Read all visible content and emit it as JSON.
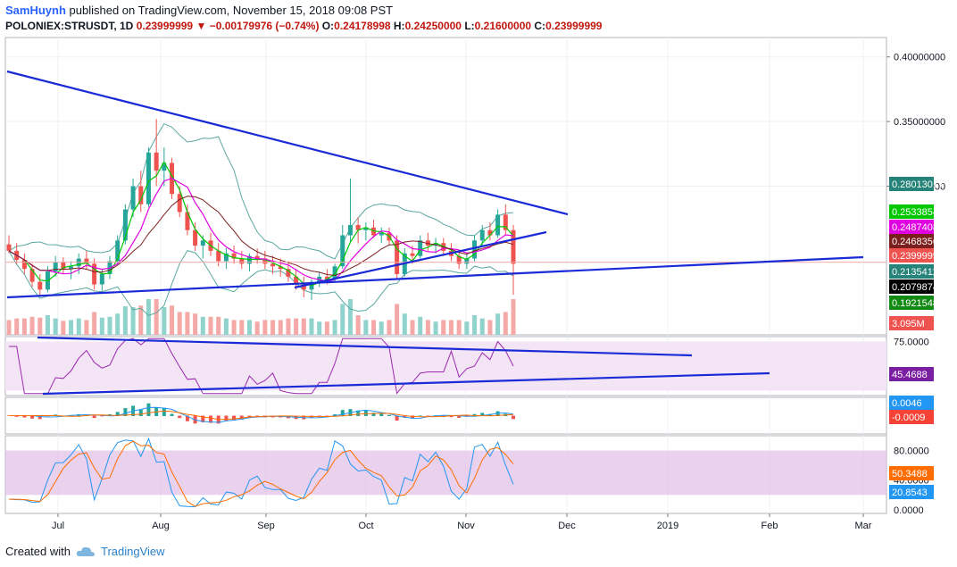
{
  "header": {
    "author": "SamHuynh",
    "published": "published on TradingView.com, November 15, 2018 09:08 PST",
    "symbol": "POLONIEX:STRUSDT, 1D",
    "last": "0.23999999",
    "change": "−0.00179976 (−0.74%)",
    "open_label": "O:",
    "open": "0.24178998",
    "high_label": "H:",
    "high": "0.24250000",
    "low_label": "L:",
    "low": "0.21600000",
    "close_label": "C:",
    "close": "0.23999999"
  },
  "footer": {
    "created_with": "Created with",
    "brand": "TradingView"
  },
  "chart_data": [
    {
      "type": "candlestick",
      "pane": "price",
      "y_ticks": [
        "0.40000000",
        "0.35000000",
        "0.30000000"
      ],
      "y_tick_values": [
        0.4,
        0.35,
        0.3
      ],
      "ylim": [
        0.185,
        0.415
      ],
      "x_labels": [
        "Jul",
        "Aug",
        "Sep",
        "Oct",
        "Nov",
        "Dec",
        "2019",
        "Feb",
        "Mar"
      ],
      "ohlc_approx": [
        [
          0.255,
          0.262,
          0.248,
          0.25
        ],
        [
          0.25,
          0.256,
          0.24,
          0.243
        ],
        [
          0.243,
          0.248,
          0.232,
          0.236
        ],
        [
          0.236,
          0.24,
          0.222,
          0.226
        ],
        [
          0.226,
          0.232,
          0.215,
          0.22
        ],
        [
          0.22,
          0.238,
          0.218,
          0.234
        ],
        [
          0.234,
          0.246,
          0.23,
          0.241
        ],
        [
          0.241,
          0.245,
          0.232,
          0.236
        ],
        [
          0.236,
          0.242,
          0.228,
          0.238
        ],
        [
          0.238,
          0.248,
          0.232,
          0.244
        ],
        [
          0.244,
          0.25,
          0.236,
          0.24
        ],
        [
          0.24,
          0.244,
          0.22,
          0.224
        ],
        [
          0.224,
          0.236,
          0.219,
          0.232
        ],
        [
          0.232,
          0.246,
          0.228,
          0.242
        ],
        [
          0.242,
          0.262,
          0.24,
          0.258
        ],
        [
          0.258,
          0.286,
          0.255,
          0.282
        ],
        [
          0.282,
          0.306,
          0.276,
          0.3
        ],
        [
          0.3,
          0.312,
          0.28,
          0.286
        ],
        [
          0.286,
          0.33,
          0.284,
          0.326
        ],
        [
          0.326,
          0.352,
          0.3,
          0.312
        ],
        [
          0.312,
          0.33,
          0.3,
          0.318
        ],
        [
          0.318,
          0.322,
          0.29,
          0.294
        ],
        [
          0.294,
          0.3,
          0.276,
          0.28
        ],
        [
          0.28,
          0.286,
          0.262,
          0.266
        ],
        [
          0.266,
          0.272,
          0.25,
          0.254
        ],
        [
          0.254,
          0.262,
          0.244,
          0.258
        ],
        [
          0.258,
          0.264,
          0.246,
          0.25
        ],
        [
          0.25,
          0.256,
          0.238,
          0.242
        ],
        [
          0.242,
          0.252,
          0.236,
          0.248
        ],
        [
          0.248,
          0.254,
          0.24,
          0.244
        ],
        [
          0.244,
          0.25,
          0.236,
          0.24
        ],
        [
          0.24,
          0.248,
          0.234,
          0.246
        ],
        [
          0.246,
          0.252,
          0.24,
          0.244
        ],
        [
          0.244,
          0.25,
          0.236,
          0.24
        ],
        [
          0.24,
          0.246,
          0.232,
          0.238
        ],
        [
          0.238,
          0.244,
          0.23,
          0.236
        ],
        [
          0.236,
          0.242,
          0.226,
          0.23
        ],
        [
          0.23,
          0.236,
          0.22,
          0.224
        ],
        [
          0.224,
          0.23,
          0.214,
          0.22
        ],
        [
          0.22,
          0.228,
          0.212,
          0.226
        ],
        [
          0.226,
          0.234,
          0.222,
          0.23
        ],
        [
          0.23,
          0.236,
          0.224,
          0.228
        ],
        [
          0.228,
          0.24,
          0.226,
          0.238
        ],
        [
          0.238,
          0.27,
          0.236,
          0.262
        ],
        [
          0.262,
          0.306,
          0.256,
          0.27
        ],
        [
          0.27,
          0.276,
          0.256,
          0.266
        ],
        [
          0.266,
          0.272,
          0.258,
          0.268
        ],
        [
          0.268,
          0.274,
          0.26,
          0.262
        ],
        [
          0.262,
          0.268,
          0.256,
          0.264
        ],
        [
          0.264,
          0.268,
          0.254,
          0.258
        ],
        [
          0.258,
          0.262,
          0.228,
          0.232
        ],
        [
          0.232,
          0.252,
          0.23,
          0.248
        ],
        [
          0.248,
          0.254,
          0.24,
          0.246
        ],
        [
          0.246,
          0.262,
          0.244,
          0.258
        ],
        [
          0.258,
          0.264,
          0.25,
          0.254
        ],
        [
          0.254,
          0.26,
          0.248,
          0.256
        ],
        [
          0.256,
          0.26,
          0.246,
          0.25
        ],
        [
          0.25,
          0.256,
          0.242,
          0.246
        ],
        [
          0.246,
          0.25,
          0.236,
          0.24
        ],
        [
          0.24,
          0.248,
          0.236,
          0.244
        ],
        [
          0.244,
          0.262,
          0.242,
          0.258
        ],
        [
          0.258,
          0.27,
          0.254,
          0.266
        ],
        [
          0.266,
          0.272,
          0.258,
          0.262
        ],
        [
          0.262,
          0.282,
          0.26,
          0.278
        ],
        [
          0.278,
          0.286,
          0.262,
          0.266
        ],
        [
          0.266,
          0.27,
          0.216,
          0.24
        ]
      ],
      "price_labels": [
        {
          "value": "0.28013017",
          "color": "#26837a"
        },
        {
          "value": "0.25338545",
          "color": "#00c800"
        },
        {
          "value": "0.24874087",
          "color": "#e100e1"
        },
        {
          "value": "0.24683566",
          "color": "#7b1e1e"
        },
        {
          "value": "0.23999999",
          "color": "#ef5350"
        },
        {
          "value": "0.21354115",
          "color": "#26837a"
        },
        {
          "value": "0.20798747",
          "color": "#000000"
        },
        {
          "value": "0.19215489",
          "color": "#138a13"
        },
        {
          "value": "3.095M",
          "color": "#ef5350"
        }
      ]
    },
    {
      "type": "line",
      "pane": "rsi",
      "y_ticks": [
        "75.0000"
      ],
      "ylim": [
        20,
        80
      ],
      "label": {
        "value": "45.4688",
        "color": "#7b1fa2"
      }
    },
    {
      "type": "histogram",
      "pane": "macd",
      "labels": [
        {
          "value": "0.0046",
          "color": "#2196f3"
        },
        {
          "value": "-0.0009",
          "color": "#f44336"
        }
      ]
    },
    {
      "type": "line",
      "pane": "stoch",
      "y_ticks": [
        "80.0000",
        "40.0000",
        "0.0000"
      ],
      "ylim": [
        -5,
        100
      ],
      "labels": [
        {
          "value": "50.3488",
          "color": "#ff6d00"
        },
        {
          "value": "20.8543",
          "color": "#2196f3"
        }
      ]
    }
  ],
  "colors": {
    "trendline": "#1a2ad6",
    "bull": "#26a69a",
    "bear": "#ef5350",
    "rsi": "#9c27b0",
    "stoch_k": "#2196f3",
    "stoch_d": "#ff6d00"
  }
}
